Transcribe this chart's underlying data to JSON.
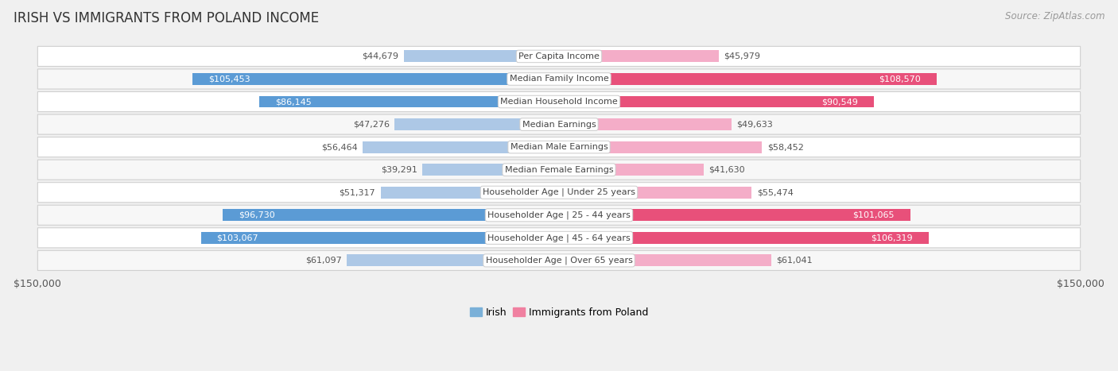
{
  "title": "IRISH VS IMMIGRANTS FROM POLAND INCOME",
  "source": "Source: ZipAtlas.com",
  "categories": [
    "Per Capita Income",
    "Median Family Income",
    "Median Household Income",
    "Median Earnings",
    "Median Male Earnings",
    "Median Female Earnings",
    "Householder Age | Under 25 years",
    "Householder Age | 25 - 44 years",
    "Householder Age | 45 - 64 years",
    "Householder Age | Over 65 years"
  ],
  "irish_values": [
    44679,
    105453,
    86145,
    47276,
    56464,
    39291,
    51317,
    96730,
    103067,
    61097
  ],
  "poland_values": [
    45979,
    108570,
    90549,
    49633,
    58452,
    41630,
    55474,
    101065,
    106319,
    61041
  ],
  "irish_labels": [
    "$44,679",
    "$105,453",
    "$86,145",
    "$47,276",
    "$56,464",
    "$39,291",
    "$51,317",
    "$96,730",
    "$103,067",
    "$61,097"
  ],
  "poland_labels": [
    "$45,979",
    "$108,570",
    "$90,549",
    "$49,633",
    "$58,452",
    "$41,630",
    "$55,474",
    "$101,065",
    "$106,319",
    "$61,041"
  ],
  "max_value": 150000,
  "irish_color_light": "#adc8e6",
  "irish_color_dark": "#5b9bd5",
  "poland_color_light": "#f4adc8",
  "poland_color_dark": "#e8507a",
  "irish_dark_threshold": 75000,
  "poland_dark_threshold": 75000,
  "background_color": "#f0f0f0",
  "row_even_color": "#ffffff",
  "row_odd_color": "#f7f7f7",
  "row_border_color": "#d0d0d0",
  "center_label_color": "#444444",
  "center_label_bg": "#ffffff",
  "center_label_border": "#cccccc",
  "value_label_inside_color": "#ffffff",
  "value_label_outside_color": "#555555",
  "title_fontsize": 12,
  "source_fontsize": 8.5,
  "bar_label_fontsize": 8,
  "cat_label_fontsize": 8,
  "axis_fontsize": 9,
  "legend_fontsize": 9,
  "irish_legend_color": "#7ab0d8",
  "poland_legend_color": "#f080a0"
}
